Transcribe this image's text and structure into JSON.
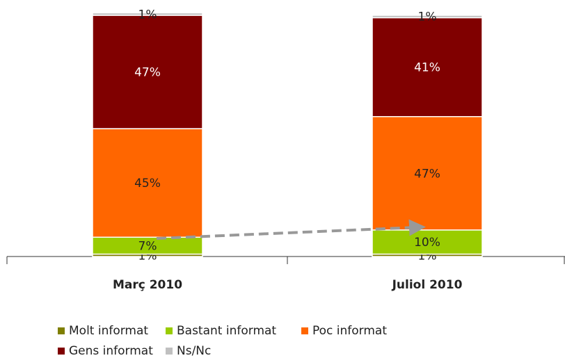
{
  "chart_data": {
    "type": "stacked_bar",
    "categories": [
      "Març 2010",
      "Juliol 2010"
    ],
    "series": [
      {
        "name": "Molt informat",
        "color": "#7f7f00",
        "values": [
          1,
          1
        ],
        "value_labels": [
          "1%",
          "1%"
        ]
      },
      {
        "name": "Bastant informat",
        "color": "#99cc00",
        "values": [
          7,
          10
        ],
        "value_labels": [
          "7%",
          "10%"
        ]
      },
      {
        "name": "Poc informat",
        "color": "#ff6600",
        "values": [
          45,
          47
        ],
        "value_labels": [
          "45%",
          "47%"
        ]
      },
      {
        "name": "Gens informat",
        "color": "#800000",
        "values": [
          47,
          41
        ],
        "value_labels": [
          "47%",
          "41%"
        ]
      },
      {
        "name": "Ns/Nc",
        "color": "#c0c0c0",
        "values": [
          1,
          1
        ],
        "value_labels": [
          "1%",
          "1%"
        ]
      }
    ]
  }
}
